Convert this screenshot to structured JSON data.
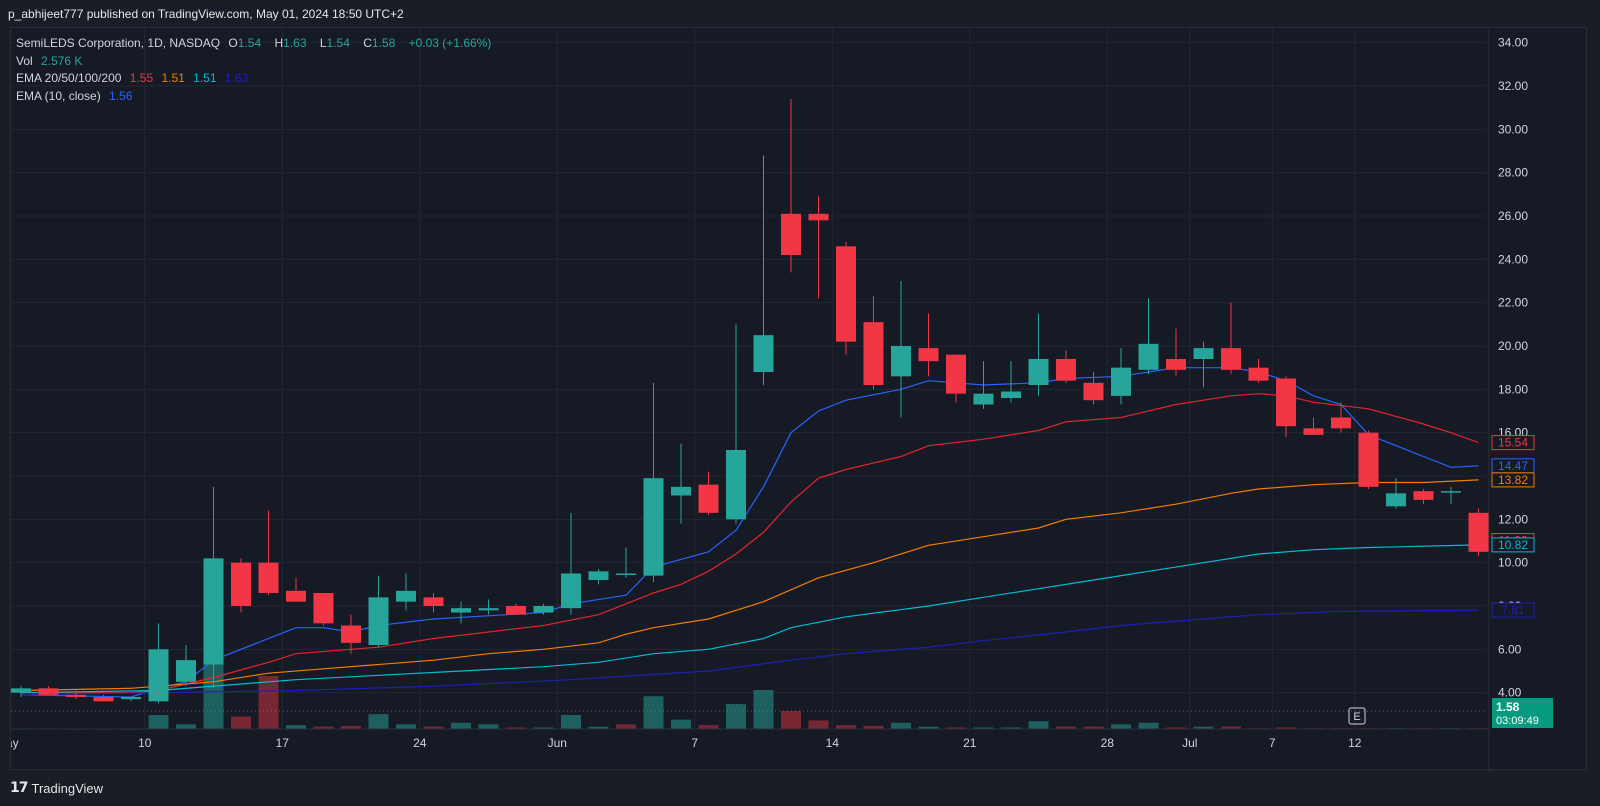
{
  "header": {
    "published": "p_abhijeet777 published on TradingView.com, May 01, 2024 18:50 UTC+2"
  },
  "legend": {
    "symbol": "SemiLEDS Corporation, 1D, NASDAQ",
    "o_label": "O",
    "o": "1.54",
    "h_label": "H",
    "h": "1.63",
    "l_label": "L",
    "l": "1.54",
    "c_label": "C",
    "c": "1.58",
    "change": "+0.03 (+1.66%)",
    "vol_label": "Vol",
    "vol": "2.576 K",
    "ema_multi_label": "EMA 20/50/100/200",
    "ema20": "1.55",
    "ema50": "1.51",
    "ema100": "1.51",
    "ema200": "1.63",
    "ema10_label": "EMA (10, close)",
    "ema10": "1.56"
  },
  "footer": {
    "brand": "TradingView",
    "logo": "17"
  },
  "colors": {
    "bg": "#161a25",
    "up": "#26a69a",
    "down": "#f23645",
    "ema10": "#2962ff",
    "ema20": "#e32430",
    "ema50": "#f57c00",
    "ema100": "#00bcd4",
    "ema200": "#1f1fb8"
  },
  "chart_data": {
    "type": "candlestick",
    "ylim": [
      2.0,
      35.0
    ],
    "yticks": [
      "4.00",
      "6.00",
      "8.00",
      "10.00",
      "12.00",
      "14.00",
      "16.00",
      "18.00",
      "20.00",
      "22.00",
      "24.00",
      "26.00",
      "28.00",
      "30.00",
      "32.00",
      "34.00"
    ],
    "xticks": [
      {
        "label": "May",
        "x": -0.5
      },
      {
        "label": "10",
        "x": 4.5
      },
      {
        "label": "17",
        "x": 9.5
      },
      {
        "label": "24",
        "x": 14.5
      },
      {
        "label": "Jun",
        "x": 19.5
      },
      {
        "label": "7",
        "x": 24.5
      },
      {
        "label": "14",
        "x": 29.5
      },
      {
        "label": "21",
        "x": 34.5
      },
      {
        "label": "28",
        "x": 39.5
      },
      {
        "label": "Jul",
        "x": 42.5
      },
      {
        "label": "7",
        "x": 45.5
      },
      {
        "label": "12",
        "x": 48.5
      }
    ],
    "ohlc": [
      [
        4.0,
        4.3,
        3.8,
        4.2
      ],
      [
        4.2,
        4.3,
        3.9,
        3.9
      ],
      [
        3.9,
        4.1,
        3.7,
        3.8
      ],
      [
        3.8,
        3.9,
        3.6,
        3.6
      ],
      [
        3.7,
        3.8,
        3.6,
        3.8
      ],
      [
        3.6,
        7.2,
        3.5,
        6.0
      ],
      [
        4.5,
        6.2,
        4.3,
        5.5
      ],
      [
        5.3,
        13.5,
        4.2,
        10.2
      ],
      [
        10.0,
        10.2,
        7.7,
        8.0
      ],
      [
        10.0,
        12.4,
        8.5,
        8.6
      ],
      [
        8.7,
        9.3,
        8.2,
        8.2
      ],
      [
        8.6,
        8.6,
        7.1,
        7.2
      ],
      [
        7.1,
        7.6,
        5.8,
        6.3
      ],
      [
        6.2,
        9.4,
        6.1,
        8.4
      ],
      [
        8.2,
        9.5,
        7.8,
        8.7
      ],
      [
        8.4,
        8.6,
        7.7,
        8.0
      ],
      [
        7.7,
        8.2,
        7.2,
        7.9
      ],
      [
        7.8,
        8.3,
        7.6,
        7.9
      ],
      [
        8.0,
        8.1,
        7.6,
        7.6
      ],
      [
        7.7,
        8.1,
        7.6,
        8.0
      ],
      [
        7.9,
        12.3,
        7.6,
        9.5
      ],
      [
        9.2,
        9.7,
        9.0,
        9.6
      ],
      [
        9.5,
        10.7,
        9.3,
        9.5
      ],
      [
        9.4,
        18.3,
        9.1,
        13.9
      ],
      [
        13.1,
        15.5,
        11.8,
        13.5
      ],
      [
        13.6,
        14.2,
        12.2,
        12.3
      ],
      [
        12.0,
        21.0,
        11.8,
        15.2
      ],
      [
        18.8,
        28.8,
        18.2,
        20.5
      ],
      [
        26.1,
        31.4,
        23.4,
        24.2
      ],
      [
        26.1,
        26.9,
        22.2,
        25.8
      ],
      [
        24.6,
        24.8,
        19.6,
        20.2
      ],
      [
        21.1,
        22.3,
        18.0,
        18.2
      ],
      [
        18.6,
        23.0,
        16.7,
        20.0
      ],
      [
        19.9,
        21.5,
        18.6,
        19.3
      ],
      [
        19.6,
        19.6,
        17.4,
        17.8
      ],
      [
        17.3,
        19.3,
        17.1,
        17.8
      ],
      [
        17.6,
        19.3,
        17.4,
        17.9
      ],
      [
        18.2,
        21.5,
        17.7,
        19.4
      ],
      [
        19.4,
        19.8,
        18.3,
        18.4
      ],
      [
        18.3,
        18.8,
        17.3,
        17.5
      ],
      [
        17.7,
        19.9,
        17.3,
        19.0
      ],
      [
        18.9,
        22.2,
        18.7,
        20.1
      ],
      [
        19.4,
        20.8,
        18.6,
        18.9
      ],
      [
        19.4,
        20.2,
        18.1,
        19.9
      ],
      [
        19.9,
        22.0,
        18.7,
        18.9
      ],
      [
        19.0,
        19.4,
        18.3,
        18.4
      ],
      [
        18.5,
        18.6,
        15.8,
        16.3
      ],
      [
        16.2,
        16.7,
        15.9,
        15.9
      ],
      [
        16.7,
        17.4,
        16.0,
        16.2
      ],
      [
        16.0,
        16.1,
        13.4,
        13.5
      ],
      [
        12.6,
        13.9,
        12.5,
        13.2
      ],
      [
        13.3,
        13.4,
        12.7,
        12.9
      ],
      [
        13.3,
        13.5,
        12.7,
        13.3
      ],
      [
        12.3,
        12.5,
        10.3,
        10.5
      ]
    ],
    "volume": [
      [
        0.05,
        1
      ],
      [
        0.05,
        0
      ],
      [
        0.04,
        0
      ],
      [
        0.04,
        0
      ],
      [
        0.04,
        1
      ],
      [
        1.8,
        1
      ],
      [
        0.6,
        1
      ],
      [
        9.0,
        1
      ],
      [
        1.6,
        0
      ],
      [
        6.8,
        0
      ],
      [
        0.5,
        1
      ],
      [
        0.3,
        0
      ],
      [
        0.4,
        0
      ],
      [
        1.9,
        1
      ],
      [
        0.6,
        1
      ],
      [
        0.3,
        0
      ],
      [
        0.8,
        1
      ],
      [
        0.6,
        1
      ],
      [
        0.2,
        0
      ],
      [
        0.2,
        1
      ],
      [
        1.8,
        1
      ],
      [
        0.3,
        1
      ],
      [
        0.6,
        0
      ],
      [
        4.2,
        1
      ],
      [
        1.2,
        1
      ],
      [
        0.5,
        0
      ],
      [
        3.2,
        1
      ],
      [
        5.0,
        1
      ],
      [
        2.3,
        0
      ],
      [
        1.1,
        0
      ],
      [
        0.5,
        0
      ],
      [
        0.4,
        0
      ],
      [
        0.8,
        1
      ],
      [
        0.3,
        1
      ],
      [
        0.2,
        0
      ],
      [
        0.2,
        1
      ],
      [
        0.2,
        1
      ],
      [
        1.0,
        1
      ],
      [
        0.3,
        0
      ],
      [
        0.3,
        0
      ],
      [
        0.6,
        1
      ],
      [
        0.8,
        1
      ],
      [
        0.2,
        0
      ],
      [
        0.3,
        1
      ],
      [
        0.3,
        0
      ],
      [
        0.1,
        0
      ],
      [
        0.2,
        0
      ],
      [
        0.1,
        0
      ],
      [
        0.1,
        0
      ],
      [
        0.1,
        0
      ],
      [
        0.1,
        1
      ],
      [
        0.1,
        0
      ],
      [
        0.1,
        1
      ],
      [
        0.1,
        0
      ]
    ],
    "ema": [
      {
        "id": "ema10",
        "price": "14.47",
        "color": "#2962ff",
        "width": 1.2,
        "values": [
          [
            0,
            3.9
          ],
          [
            4,
            3.8
          ],
          [
            5,
            4.2
          ],
          [
            6,
            4.5
          ],
          [
            7,
            5.5
          ],
          [
            9,
            6.5
          ],
          [
            10,
            7.0
          ],
          [
            11,
            7.0
          ],
          [
            12,
            6.8
          ],
          [
            13,
            7.1
          ],
          [
            15,
            7.4
          ],
          [
            19,
            7.7
          ],
          [
            20,
            8.1
          ],
          [
            22,
            8.5
          ],
          [
            23,
            9.8
          ],
          [
            25,
            10.5
          ],
          [
            26,
            11.5
          ],
          [
            27,
            13.5
          ],
          [
            28,
            16.0
          ],
          [
            29,
            17.0
          ],
          [
            30,
            17.5
          ],
          [
            32,
            18.0
          ],
          [
            33,
            18.4
          ],
          [
            35,
            18.2
          ],
          [
            37,
            18.3
          ],
          [
            38,
            18.5
          ],
          [
            40,
            18.6
          ],
          [
            42,
            19.0
          ],
          [
            44,
            19.0
          ],
          [
            45,
            18.8
          ],
          [
            46,
            18.4
          ],
          [
            47,
            17.7
          ],
          [
            48,
            17.3
          ],
          [
            49,
            15.9
          ],
          [
            51,
            14.9
          ],
          [
            52,
            14.4
          ],
          [
            53,
            14.47
          ]
        ]
      },
      {
        "id": "ema20",
        "price": "15.54",
        "color": "#e32430",
        "width": 1.2,
        "values": [
          [
            0,
            4.0
          ],
          [
            4,
            4.0
          ],
          [
            5,
            4.1
          ],
          [
            7,
            4.7
          ],
          [
            9,
            5.4
          ],
          [
            10,
            5.8
          ],
          [
            12,
            6.0
          ],
          [
            13,
            6.1
          ],
          [
            15,
            6.5
          ],
          [
            17,
            6.8
          ],
          [
            19,
            7.1
          ],
          [
            21,
            7.6
          ],
          [
            22,
            8.1
          ],
          [
            23,
            8.6
          ],
          [
            24,
            9.0
          ],
          [
            25,
            9.6
          ],
          [
            26,
            10.4
          ],
          [
            27,
            11.4
          ],
          [
            28,
            12.8
          ],
          [
            29,
            13.9
          ],
          [
            30,
            14.3
          ],
          [
            32,
            14.9
          ],
          [
            33,
            15.4
          ],
          [
            35,
            15.7
          ],
          [
            37,
            16.1
          ],
          [
            38,
            16.5
          ],
          [
            40,
            16.7
          ],
          [
            42,
            17.3
          ],
          [
            44,
            17.7
          ],
          [
            45,
            17.8
          ],
          [
            46,
            17.7
          ],
          [
            47,
            17.4
          ],
          [
            49,
            17.1
          ],
          [
            51,
            16.4
          ],
          [
            52,
            16.0
          ],
          [
            53,
            15.54
          ]
        ]
      },
      {
        "id": "ema50",
        "price": "13.82",
        "color": "#f57c00",
        "width": 1.2,
        "values": [
          [
            0,
            4.1
          ],
          [
            4,
            4.2
          ],
          [
            7,
            4.5
          ],
          [
            9,
            4.9
          ],
          [
            11,
            5.1
          ],
          [
            13,
            5.3
          ],
          [
            15,
            5.5
          ],
          [
            17,
            5.8
          ],
          [
            19,
            6.0
          ],
          [
            21,
            6.3
          ],
          [
            22,
            6.7
          ],
          [
            23,
            7.0
          ],
          [
            25,
            7.4
          ],
          [
            27,
            8.2
          ],
          [
            29,
            9.3
          ],
          [
            31,
            10.0
          ],
          [
            33,
            10.8
          ],
          [
            35,
            11.2
          ],
          [
            37,
            11.6
          ],
          [
            38,
            12.0
          ],
          [
            40,
            12.3
          ],
          [
            42,
            12.7
          ],
          [
            44,
            13.2
          ],
          [
            45,
            13.4
          ],
          [
            47,
            13.6
          ],
          [
            49,
            13.7
          ],
          [
            51,
            13.7
          ],
          [
            53,
            13.82
          ]
        ]
      },
      {
        "id": "ema100",
        "price": "10.82",
        "color": "#00bcd4",
        "width": 1.2,
        "values": [
          [
            0,
            4.0
          ],
          [
            5,
            4.1
          ],
          [
            8,
            4.4
          ],
          [
            10,
            4.6
          ],
          [
            13,
            4.8
          ],
          [
            16,
            5.0
          ],
          [
            19,
            5.2
          ],
          [
            21,
            5.4
          ],
          [
            23,
            5.8
          ],
          [
            25,
            6.0
          ],
          [
            27,
            6.5
          ],
          [
            28,
            7.0
          ],
          [
            30,
            7.5
          ],
          [
            33,
            8.0
          ],
          [
            35,
            8.4
          ],
          [
            37,
            8.8
          ],
          [
            39,
            9.2
          ],
          [
            41,
            9.6
          ],
          [
            43,
            10.0
          ],
          [
            45,
            10.4
          ],
          [
            47,
            10.6
          ],
          [
            49,
            10.7
          ],
          [
            53,
            10.82
          ]
        ]
      },
      {
        "id": "ema200",
        "price": "7.81",
        "color": "#1f1fb8",
        "width": 1.2,
        "values": [
          [
            0,
            3.9
          ],
          [
            5,
            4.0
          ],
          [
            10,
            4.1
          ],
          [
            15,
            4.3
          ],
          [
            20,
            4.6
          ],
          [
            25,
            5.0
          ],
          [
            28,
            5.5
          ],
          [
            30,
            5.8
          ],
          [
            33,
            6.1
          ],
          [
            35,
            6.4
          ],
          [
            38,
            6.8
          ],
          [
            40,
            7.1
          ],
          [
            43,
            7.4
          ],
          [
            45,
            7.6
          ],
          [
            48,
            7.75
          ],
          [
            53,
            7.81
          ]
        ]
      }
    ],
    "price_labels": [
      {
        "text": "15.54",
        "value": 15.54,
        "color": "#f23645",
        "style": "box"
      },
      {
        "text": "14.47",
        "value": 14.47,
        "color": "#2962ff",
        "style": "box"
      },
      {
        "text": "13.82",
        "value": 13.82,
        "color": "#f57c00",
        "style": "box"
      },
      {
        "text": "11.02",
        "value": 11.02,
        "color": "#f23645",
        "style": "box"
      },
      {
        "text": "10.82",
        "value": 10.82,
        "color": "#00bcd4",
        "style": "box"
      },
      {
        "text": "7.81",
        "value": 7.81,
        "color": "#1f1fb8",
        "style": "box"
      }
    ],
    "last_price": {
      "text": "1.58",
      "countdown": "03:09:49",
      "color": "#089981"
    },
    "scale_badge": "E"
  }
}
